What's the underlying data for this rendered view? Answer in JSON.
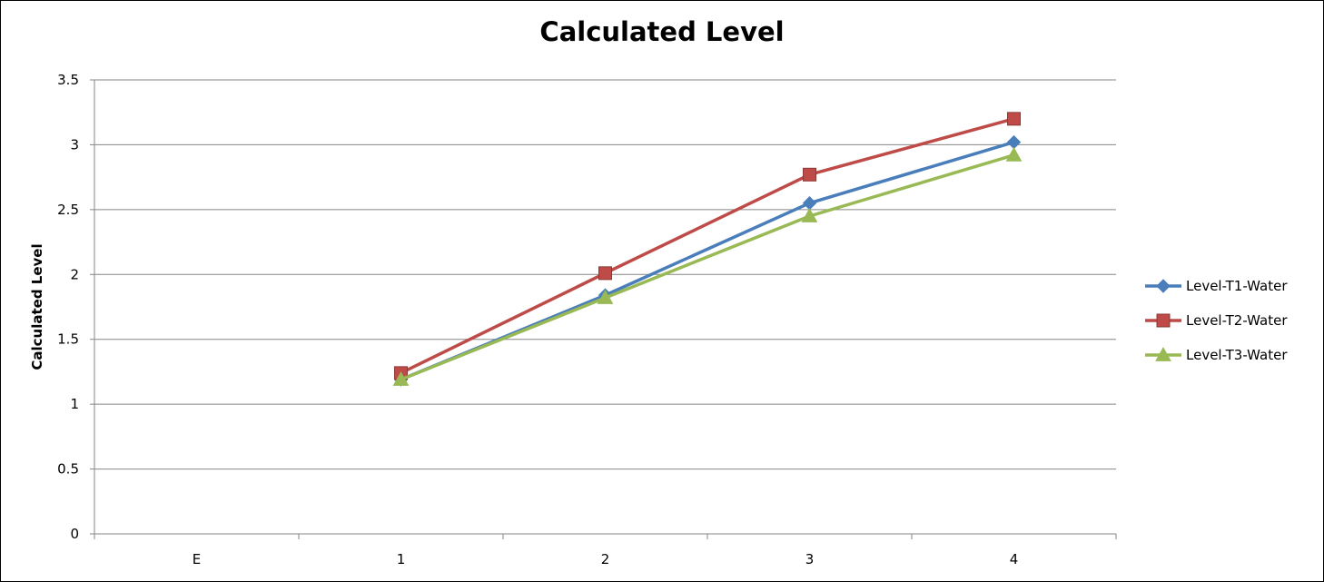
{
  "chart_data": {
    "type": "line",
    "title": "Calculated Level",
    "xlabel": "",
    "ylabel": "Calculated Level",
    "categories": [
      "E",
      "1",
      "2",
      "3",
      "4"
    ],
    "ylim": [
      0,
      3.5
    ],
    "yticks": [
      0,
      0.5,
      1,
      1.5,
      2,
      2.5,
      3,
      3.5
    ],
    "ytick_labels": [
      "0",
      "0.5",
      "1",
      "1.5",
      "2",
      "2.5",
      "3",
      "3.5"
    ],
    "grid": "horizontal",
    "legend_position": "right",
    "series": [
      {
        "name": "Level-T1-Water",
        "color": "#4a7ebb",
        "marker": "diamond",
        "values": [
          null,
          1.19,
          1.84,
          2.55,
          3.02
        ]
      },
      {
        "name": "Level-T2-Water",
        "color": "#be4b48",
        "marker": "square",
        "values": [
          null,
          1.24,
          2.01,
          2.77,
          3.2
        ]
      },
      {
        "name": "Level-T3-Water",
        "color": "#98b954",
        "marker": "triangle",
        "values": [
          null,
          1.19,
          1.82,
          2.45,
          2.92
        ]
      }
    ]
  }
}
